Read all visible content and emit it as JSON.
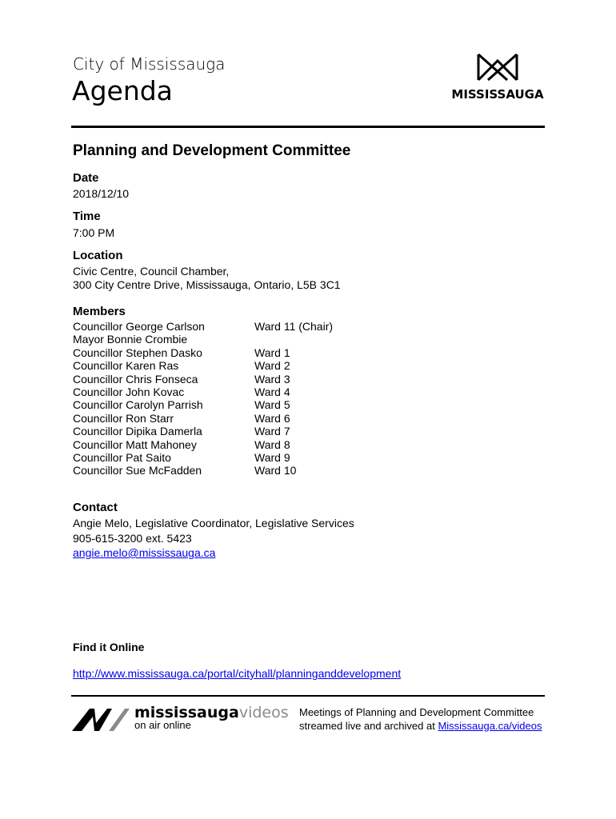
{
  "header": {
    "city": "City of Mississauga",
    "title": "Agenda",
    "logo_text": "MISSISSAUGA"
  },
  "committee": "Planning and Development Committee",
  "date": {
    "label": "Date",
    "value": "2018/12/10"
  },
  "time": {
    "label": "Time",
    "value": "7:00 PM"
  },
  "location": {
    "label": "Location",
    "line1": "Civic Centre, Council Chamber,",
    "line2": "300 City Centre Drive, Mississauga, Ontario, L5B 3C1"
  },
  "members": {
    "label": "Members",
    "rows": [
      {
        "name": "Councillor George Carlson",
        "ward": "Ward 11 (Chair)"
      },
      {
        "name": "Mayor Bonnie Crombie",
        "ward": ""
      },
      {
        "name": "Councillor Stephen Dasko",
        "ward": "Ward 1"
      },
      {
        "name": "Councillor Karen Ras",
        "ward": "Ward 2"
      },
      {
        "name": "Councillor Chris Fonseca",
        "ward": "Ward 3"
      },
      {
        "name": "Councillor John Kovac",
        "ward": "Ward 4"
      },
      {
        "name": "Councillor Carolyn Parrish",
        "ward": "Ward 5"
      },
      {
        "name": "Councillor Ron Starr",
        "ward": "Ward 6"
      },
      {
        "name": "Councillor Dipika Damerla",
        "ward": "Ward 7"
      },
      {
        "name": "Councillor Matt Mahoney",
        "ward": "Ward 8"
      },
      {
        "name": "Councillor Pat Saito",
        "ward": "Ward 9"
      },
      {
        "name": "Councillor Sue McFadden",
        "ward": "Ward 10"
      }
    ]
  },
  "contact": {
    "label": "Contact",
    "line1": "Angie Melo, Legislative Coordinator, Legislative Services",
    "phone": "905-615-3200 ext. 5423",
    "email": "angie.melo@mississauga.ca"
  },
  "online": {
    "label": "Find it Online",
    "url": "http://www.mississauga.ca/portal/cityhall/planninganddevelopment"
  },
  "footer": {
    "brand_bold": "mississauga",
    "brand_light": "videos",
    "tagline": "on air online",
    "line1": "Meetings of Planning and Development  Committee",
    "line2": "streamed live and archived at ",
    "link": "Mississauga.ca/videos"
  },
  "colors": {
    "link": "#0000ee",
    "brand_grey": "#8a8a8a"
  }
}
